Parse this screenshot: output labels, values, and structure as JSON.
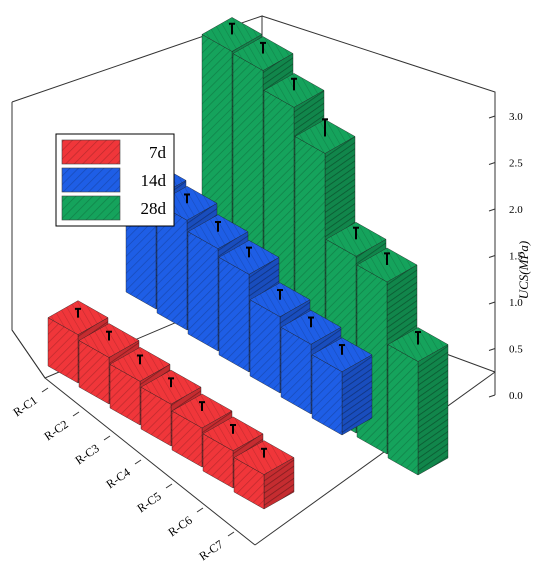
{
  "chart_data": {
    "type": "bar",
    "subtype": "3d-grouped",
    "title": "",
    "categories": [
      "R-C1",
      "R-C2",
      "R-C3",
      "R-C4",
      "R-C5",
      "R-C6",
      "R-C7"
    ],
    "series": [
      {
        "name": "7d",
        "color": "#f0363a",
        "values": [
          0.52,
          0.5,
          0.47,
          0.45,
          0.42,
          0.4,
          0.37
        ],
        "errors": [
          0.03,
          0.03,
          0.03,
          0.03,
          0.03,
          0.03,
          0.03
        ]
      },
      {
        "name": "14d",
        "color": "#1e5ee6",
        "values": [
          1.2,
          1.18,
          1.1,
          1.05,
          0.82,
          0.75,
          0.68
        ],
        "errors": [
          0.03,
          0.03,
          0.04,
          0.04,
          0.04,
          0.04,
          0.04
        ]
      },
      {
        "name": "28d",
        "color": "#15a35c",
        "values": [
          3.2,
          3.22,
          3.05,
          2.78,
          1.9,
          1.85,
          1.22
        ],
        "errors": [
          0.05,
          0.05,
          0.06,
          0.12,
          0.06,
          0.06,
          0.07
        ]
      }
    ],
    "zlabel": "UCS(MPa)",
    "zlim": [
      0.0,
      3.0
    ],
    "zticks": [
      "0.0",
      "0.5",
      "1.0",
      "1.5",
      "2.0",
      "2.5",
      "3.0"
    ],
    "legend_position": "top-left",
    "grid": false,
    "pattern": "hatched"
  }
}
